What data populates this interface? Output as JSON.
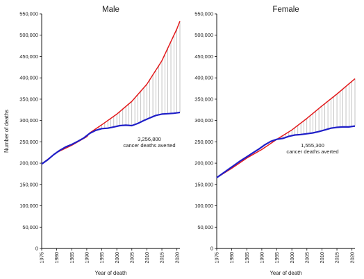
{
  "chart_data": [
    {
      "type": "line",
      "title": "Male",
      "xlabel": "Year of death",
      "ylabel": "Number of deaths",
      "xlim": [
        1975,
        2021
      ],
      "ylim": [
        0,
        550000
      ],
      "xticks": [
        1975,
        1980,
        1985,
        1990,
        1995,
        2000,
        2005,
        2010,
        2015,
        2020
      ],
      "yticks": [
        0,
        50000,
        100000,
        150000,
        200000,
        250000,
        300000,
        350000,
        400000,
        450000,
        500000,
        550000
      ],
      "ytick_labels": [
        "0",
        "50,000",
        "100,000",
        "150,000",
        "200,000",
        "250,000",
        "300,000",
        "350,000",
        "400,000",
        "450,000",
        "500,000",
        "550,000"
      ],
      "annotation": [
        "3,256,800",
        "cancer deaths averted"
      ],
      "series": [
        {
          "color": "#e41a1c",
          "x": [
            1975,
            1980,
            1985,
            1990,
            1991,
            1995,
            2000,
            2005,
            2010,
            2015,
            2020,
            2021
          ],
          "y": [
            198000,
            225000,
            242000,
            262000,
            271000,
            290000,
            315000,
            345000,
            385000,
            440000,
            515000,
            533000
          ]
        },
        {
          "color": "#1f1fc8",
          "x": [
            1975,
            1977,
            1979,
            1981,
            1983,
            1985,
            1987,
            1989,
            1991,
            1993,
            1995,
            1997,
            1999,
            2001,
            2003,
            2005,
            2007,
            2009,
            2011,
            2013,
            2015,
            2017,
            2019,
            2021
          ],
          "y": [
            198000,
            208000,
            220000,
            230000,
            238000,
            244000,
            251000,
            259000,
            270000,
            277000,
            281000,
            282000,
            285000,
            288000,
            289000,
            288000,
            293000,
            300000,
            306000,
            312000,
            315000,
            316000,
            317000,
            319000
          ]
        }
      ]
    },
    {
      "type": "line",
      "title": "Female",
      "xlabel": "Year of death",
      "ylabel": "",
      "xlim": [
        1975,
        2021
      ],
      "ylim": [
        0,
        550000
      ],
      "xticks": [
        1975,
        1980,
        1985,
        1990,
        1995,
        2000,
        2005,
        2010,
        2015,
        2020
      ],
      "yticks": [
        0,
        50000,
        100000,
        150000,
        200000,
        250000,
        300000,
        350000,
        400000,
        450000,
        500000,
        550000
      ],
      "ytick_labels": [
        "0",
        "50,000",
        "100,000",
        "150,000",
        "200,000",
        "250,000",
        "300,000",
        "350,000",
        "400,000",
        "450,000",
        "500,000",
        "550,000"
      ],
      "annotation": [
        "1,555,300",
        "cancer deaths averted"
      ],
      "series": [
        {
          "color": "#e41a1c",
          "x": [
            1975,
            1980,
            1985,
            1990,
            1995,
            2000,
            2005,
            2010,
            2015,
            2020,
            2021
          ],
          "y": [
            166000,
            188000,
            212000,
            232000,
            256000,
            278000,
            305000,
            334000,
            362000,
            392000,
            398000
          ]
        },
        {
          "color": "#1f1fc8",
          "x": [
            1975,
            1977,
            1979,
            1981,
            1983,
            1985,
            1987,
            1989,
            1991,
            1993,
            1995,
            1997,
            1999,
            2001,
            2003,
            2005,
            2007,
            2009,
            2011,
            2013,
            2015,
            2017,
            2019,
            2021
          ],
          "y": [
            166000,
            176000,
            186000,
            196000,
            206000,
            215000,
            224000,
            233000,
            243000,
            251000,
            256000,
            258000,
            263000,
            266000,
            267000,
            269000,
            271000,
            274000,
            278000,
            282000,
            284000,
            285000,
            285000,
            287000
          ]
        }
      ]
    }
  ]
}
